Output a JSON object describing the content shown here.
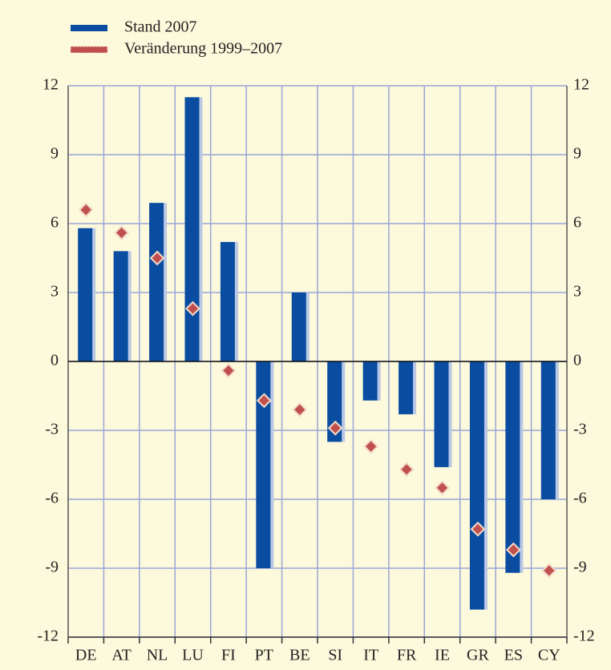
{
  "chart_data": {
    "type": "bar",
    "categories": [
      "DE",
      "AT",
      "NL",
      "LU",
      "FI",
      "PT",
      "BE",
      "SI",
      "IT",
      "FR",
      "IE",
      "GR",
      "ES",
      "CY"
    ],
    "series": [
      {
        "name": "Stand 2007",
        "type": "bar",
        "color": "#0a4da0",
        "values": [
          5.8,
          4.8,
          6.9,
          11.5,
          5.2,
          -9.0,
          3.0,
          -3.5,
          -1.7,
          -2.3,
          -4.6,
          -10.8,
          -9.2,
          -6.0
        ]
      },
      {
        "name": "Veränderung 1999–2007",
        "type": "marker",
        "color": "#c0504d",
        "values": [
          6.6,
          5.6,
          4.5,
          2.3,
          -0.4,
          -1.7,
          -2.1,
          -2.9,
          -3.7,
          -4.7,
          -5.5,
          -7.3,
          -8.2,
          -9.1
        ]
      }
    ],
    "ylim": [
      -12,
      12
    ],
    "yticks": [
      -12,
      -9,
      -6,
      -3,
      0,
      3,
      6,
      9,
      12
    ],
    "y2lim": [
      -12,
      12
    ],
    "y2ticks": [
      -12,
      -9,
      -6,
      -3,
      0,
      3,
      6,
      9,
      12
    ],
    "grid": true,
    "legend": "top-left"
  }
}
